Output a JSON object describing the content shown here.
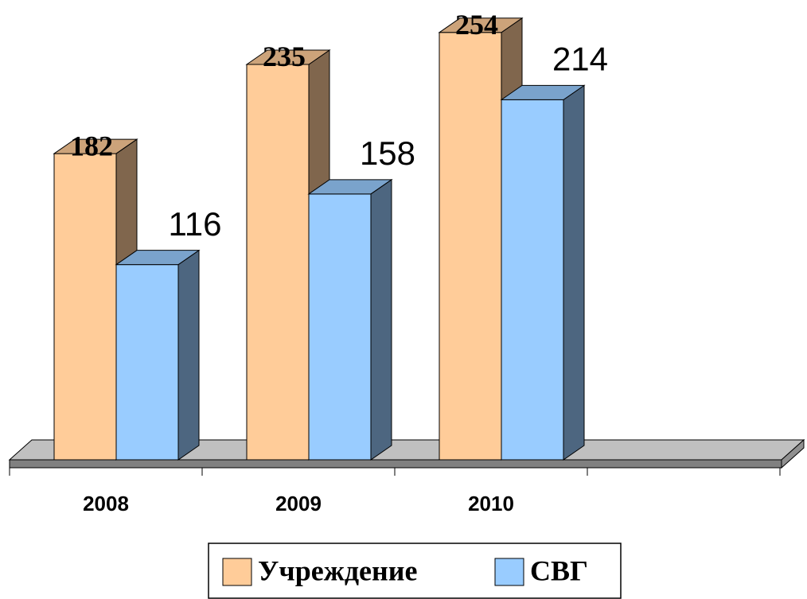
{
  "chart_data": {
    "type": "bar3d",
    "categories": [
      "2008",
      "2009",
      "2010",
      null
    ],
    "series": [
      {
        "name": "Учреждение",
        "color": "#FFCC99",
        "values": [
          182,
          235,
          254,
          null
        ]
      },
      {
        "name": "СВГ",
        "color": "#99CCFF",
        "values": [
          116,
          158,
          214,
          null
        ]
      }
    ],
    "legend": "bottom"
  }
}
